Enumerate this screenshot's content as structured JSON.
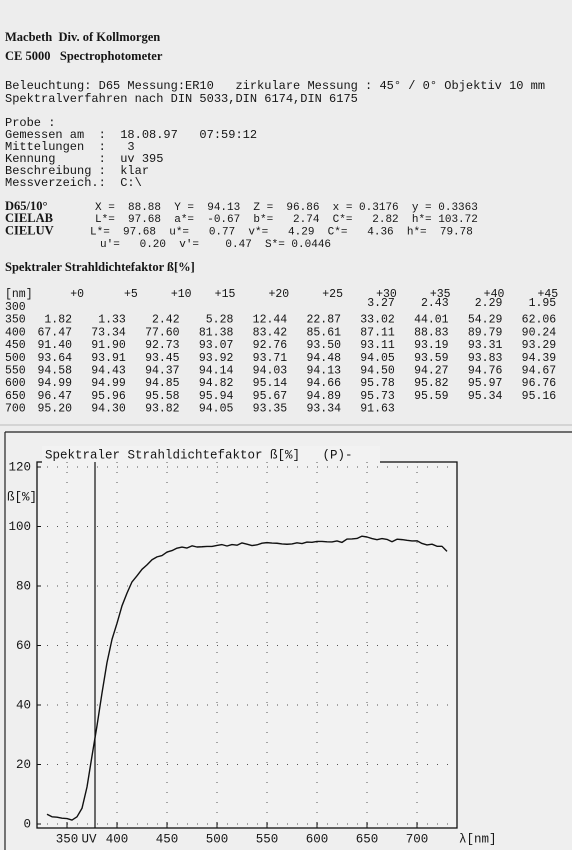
{
  "header": {
    "line1": "Macbeth  Div. of Kollmorgen",
    "line2": "CE 5000   Spectrophotometer"
  },
  "method": [
    "Beleuchtung: D65 Messung:ER10   zirkulare Messung : 45° / 0° Objektiv 10 mm",
    "Spektralverfahren nach DIN 5033,DIN 6174,DIN 6175"
  ],
  "sample": [
    "Probe :",
    "Gemessen am  :  18.08.97   07:59:12",
    "Mittelungen  :   3",
    "Kennung      :  uv 395",
    "Beschreibung :  klar",
    "Messverzeich.:  C:\\"
  ],
  "colorimetry": [
    {
      "label": "D65/10°",
      "text": "X =  88.88  Y =  94.13  Z =  96.86  x = 0.3176  y = 0.3363"
    },
    {
      "label": "CIELAB",
      "text": "L*=  97.68  a*=  -0.67  b*=   2.74  C*=   2.82  h*= 103.72"
    },
    {
      "label": "CIELUV",
      "text": "L*=  97.68  u*=   0.77  v*=   4.29  C*=   4.36  h*=  79.78"
    },
    {
      "label": null,
      "text": "u'=   0.20  v'=    0.47  S*= 0.0446"
    }
  ],
  "table": {
    "title": "Spektraler Strahldichtefaktor ß[%]",
    "header": [
      "[nm]",
      "+0",
      "+5",
      "+10",
      "+15",
      "+20",
      "+25",
      "+30",
      "+35",
      "+40",
      "+45"
    ],
    "rows": [
      {
        "nm": "300",
        "values": [
          null,
          null,
          null,
          null,
          null,
          null,
          "3.27",
          "2.43",
          "2.29",
          "1.95"
        ]
      },
      {
        "nm": "350",
        "values": [
          "1.82",
          "1.33",
          "2.42",
          "5.28",
          "12.44",
          "22.87",
          "33.02",
          "44.01",
          "54.29",
          "62.06"
        ]
      },
      {
        "nm": "400",
        "values": [
          "67.47",
          "73.34",
          "77.60",
          "81.38",
          "83.42",
          "85.61",
          "87.11",
          "88.83",
          "89.79",
          "90.24"
        ]
      },
      {
        "nm": "450",
        "values": [
          "91.40",
          "91.90",
          "92.73",
          "93.07",
          "92.76",
          "93.50",
          "93.11",
          "93.19",
          "93.31",
          "93.29"
        ]
      },
      {
        "nm": "500",
        "values": [
          "93.64",
          "93.91",
          "93.45",
          "93.92",
          "93.71",
          "94.48",
          "94.05",
          "93.59",
          "93.83",
          "94.39"
        ]
      },
      {
        "nm": "550",
        "values": [
          "94.58",
          "94.43",
          "94.37",
          "94.14",
          "94.03",
          "94.13",
          "94.50",
          "94.27",
          "94.76",
          "94.67"
        ]
      },
      {
        "nm": "600",
        "values": [
          "94.99",
          "94.99",
          "94.85",
          "94.82",
          "95.14",
          "94.66",
          "95.78",
          "95.82",
          "95.97",
          "96.76"
        ]
      },
      {
        "nm": "650",
        "values": [
          "96.47",
          "95.96",
          "95.58",
          "95.94",
          "95.67",
          "94.89",
          "95.73",
          "95.59",
          "95.34",
          "95.16"
        ]
      },
      {
        "nm": "700",
        "values": [
          "95.20",
          "94.30",
          "93.82",
          "94.05",
          "93.35",
          "93.34",
          "91.63",
          null,
          null,
          null
        ]
      }
    ]
  },
  "chart_data": {
    "type": "line",
    "title": "Spektraler Strahldichtefaktor ß[%]   (P)-",
    "ylabel": "ß[%]",
    "xlabel": "λ[nm]",
    "color": "#111111",
    "grid": true,
    "xlim": [
      320,
      740
    ],
    "ylim": [
      0,
      120
    ],
    "xticks": [
      350,
      400,
      450,
      500,
      550,
      600,
      650,
      700
    ],
    "yticks": [
      0,
      20,
      40,
      60,
      80,
      100,
      120
    ],
    "marker": {
      "x": 378,
      "label": "UV"
    },
    "x": [
      330,
      335,
      340,
      345,
      350,
      355,
      360,
      365,
      370,
      375,
      380,
      385,
      390,
      395,
      400,
      405,
      410,
      415,
      420,
      425,
      430,
      435,
      440,
      445,
      450,
      455,
      460,
      465,
      470,
      475,
      480,
      485,
      490,
      495,
      500,
      505,
      510,
      515,
      520,
      525,
      530,
      535,
      540,
      545,
      550,
      555,
      560,
      565,
      570,
      575,
      580,
      585,
      590,
      595,
      600,
      605,
      610,
      615,
      620,
      625,
      630,
      635,
      640,
      645,
      650,
      655,
      660,
      665,
      670,
      675,
      680,
      685,
      690,
      695,
      700,
      705,
      710,
      715,
      720,
      725,
      730
    ],
    "values": [
      3.27,
      2.43,
      2.29,
      1.95,
      1.82,
      1.33,
      2.42,
      5.28,
      12.44,
      22.87,
      33.02,
      44.01,
      54.29,
      62.06,
      67.47,
      73.34,
      77.6,
      81.38,
      83.42,
      85.61,
      87.11,
      88.83,
      89.79,
      90.24,
      91.4,
      91.9,
      92.73,
      93.07,
      92.76,
      93.5,
      93.11,
      93.19,
      93.31,
      93.29,
      93.64,
      93.91,
      93.45,
      93.92,
      93.71,
      94.48,
      94.05,
      93.59,
      93.83,
      94.39,
      94.58,
      94.43,
      94.37,
      94.14,
      94.03,
      94.13,
      94.5,
      94.27,
      94.76,
      94.67,
      94.99,
      94.99,
      94.85,
      94.82,
      95.14,
      94.66,
      95.78,
      95.82,
      95.97,
      96.76,
      96.47,
      95.96,
      95.58,
      95.94,
      95.67,
      94.89,
      95.73,
      95.59,
      95.34,
      95.16,
      95.2,
      94.3,
      93.82,
      94.05,
      93.35,
      93.34,
      91.63
    ]
  }
}
